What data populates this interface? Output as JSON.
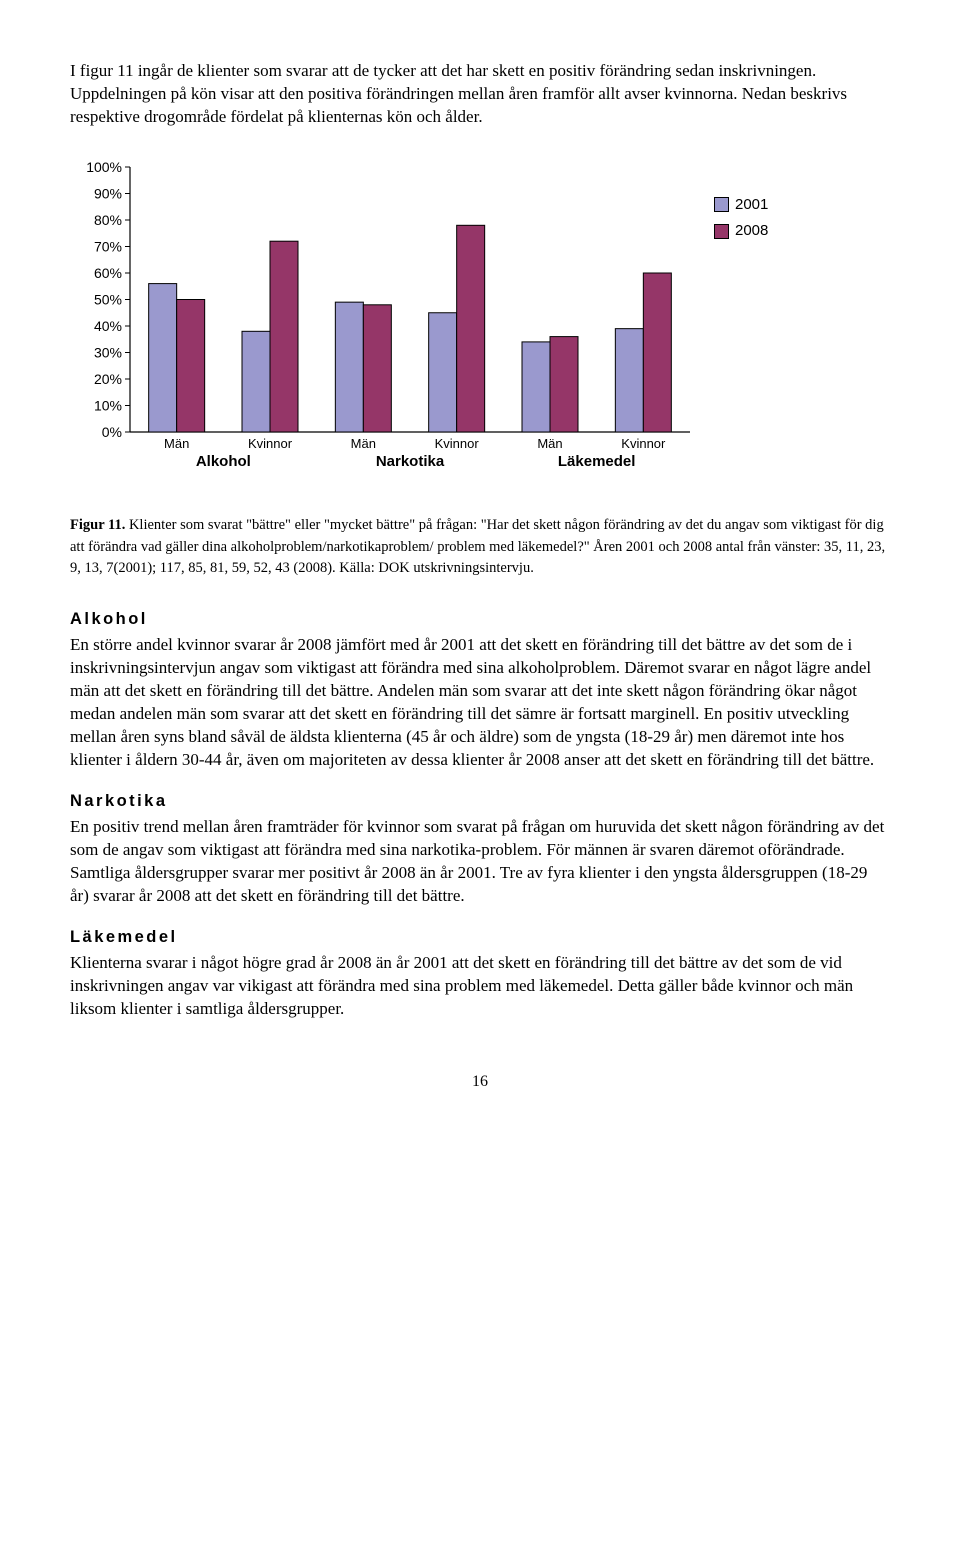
{
  "intro_p1": "I figur 11 ingår de klienter som svarar att de tycker att det har skett en positiv förändring sedan inskrivningen. Uppdelningen på kön visar att den positiva förändringen mellan åren framför allt avser kvinnorna. Nedan beskrivs respektive drogområde fördelat på klienternas kön och ålder.",
  "chart": {
    "type": "bar",
    "ytick_labels": [
      "0%",
      "10%",
      "20%",
      "30%",
      "40%",
      "50%",
      "60%",
      "70%",
      "80%",
      "90%",
      "100%"
    ],
    "ymax": 100,
    "plot_bg": "#ffffff",
    "border_color": "#000000",
    "grid_color": "#000000",
    "colors": {
      "2001": "#9a99ce",
      "2008": "#953668"
    },
    "legend": [
      "2001",
      "2008"
    ],
    "groups": [
      {
        "label": "Alkohol",
        "sub": [
          "Män",
          "Kvinnor"
        ],
        "bars": [
          [
            56,
            50
          ],
          [
            38,
            72
          ]
        ]
      },
      {
        "label": "Narkotika",
        "sub": [
          "Män",
          "Kvinnor"
        ],
        "bars": [
          [
            49,
            48
          ],
          [
            45,
            78
          ]
        ]
      },
      {
        "label": "Läkemedel",
        "sub": [
          "Män",
          "Kvinnor"
        ],
        "bars": [
          [
            34,
            36
          ],
          [
            39,
            60
          ]
        ]
      }
    ]
  },
  "caption_strong": "Figur 11.",
  "caption_rest": " Klienter som svarat \"bättre\" eller \"mycket bättre\" på frågan: \"Har det skett någon förändring av det du angav som viktigast för dig att förändra vad gäller dina alkoholproblem/narkotikaproblem/ problem med läkemedel?\" Åren 2001 och 2008 antal från vänster: 35, 11, 23, 9, 13, 7(2001); 117, 85, 81, 59, 52, 43 (2008). Källa: DOK utskrivningsintervju.",
  "sections": [
    {
      "head": "Alkohol",
      "body": "En större andel kvinnor svarar år 2008 jämfört med år 2001 att det skett en förändring till det bättre av det som de i inskrivningsintervjun angav som viktigast att förändra med sina alkoholproblem. Däremot svarar en något lägre andel män att det skett en förändring till det bättre. Andelen män som svarar att det inte skett någon förändring ökar något medan andelen män som svarar att det skett en förändring till det sämre är fortsatt marginell. En positiv utveckling mellan åren syns bland såväl de äldsta klienterna (45 år och äldre) som de yngsta (18-29 år) men däremot inte hos klienter i åldern 30-44 år, även om majoriteten av dessa klienter år 2008 anser att det skett en förändring till det bättre."
    },
    {
      "head": "Narkotika",
      "body": "En positiv trend mellan åren framträder för kvinnor som svarat på frågan om huruvida det skett någon förändring av det som de angav som viktigast att förändra med sina narkotika-problem. För männen är svaren däremot oförändrade. Samtliga åldersgrupper svarar mer positivt år 2008 än år 2001. Tre av fyra klienter i den yngsta åldersgruppen (18-29 år) svarar år 2008 att det skett en förändring till det bättre."
    },
    {
      "head": "Läkemedel",
      "body": "Klienterna svarar i något högre grad år 2008 än år 2001 att det skett en förändring till det bättre av det som de vid inskrivningen angav var vikigast att förändra med sina problem med läkemedel. Detta gäller både kvinnor och män liksom klienter i samtliga åldersgrupper."
    }
  ],
  "page_number": "16"
}
